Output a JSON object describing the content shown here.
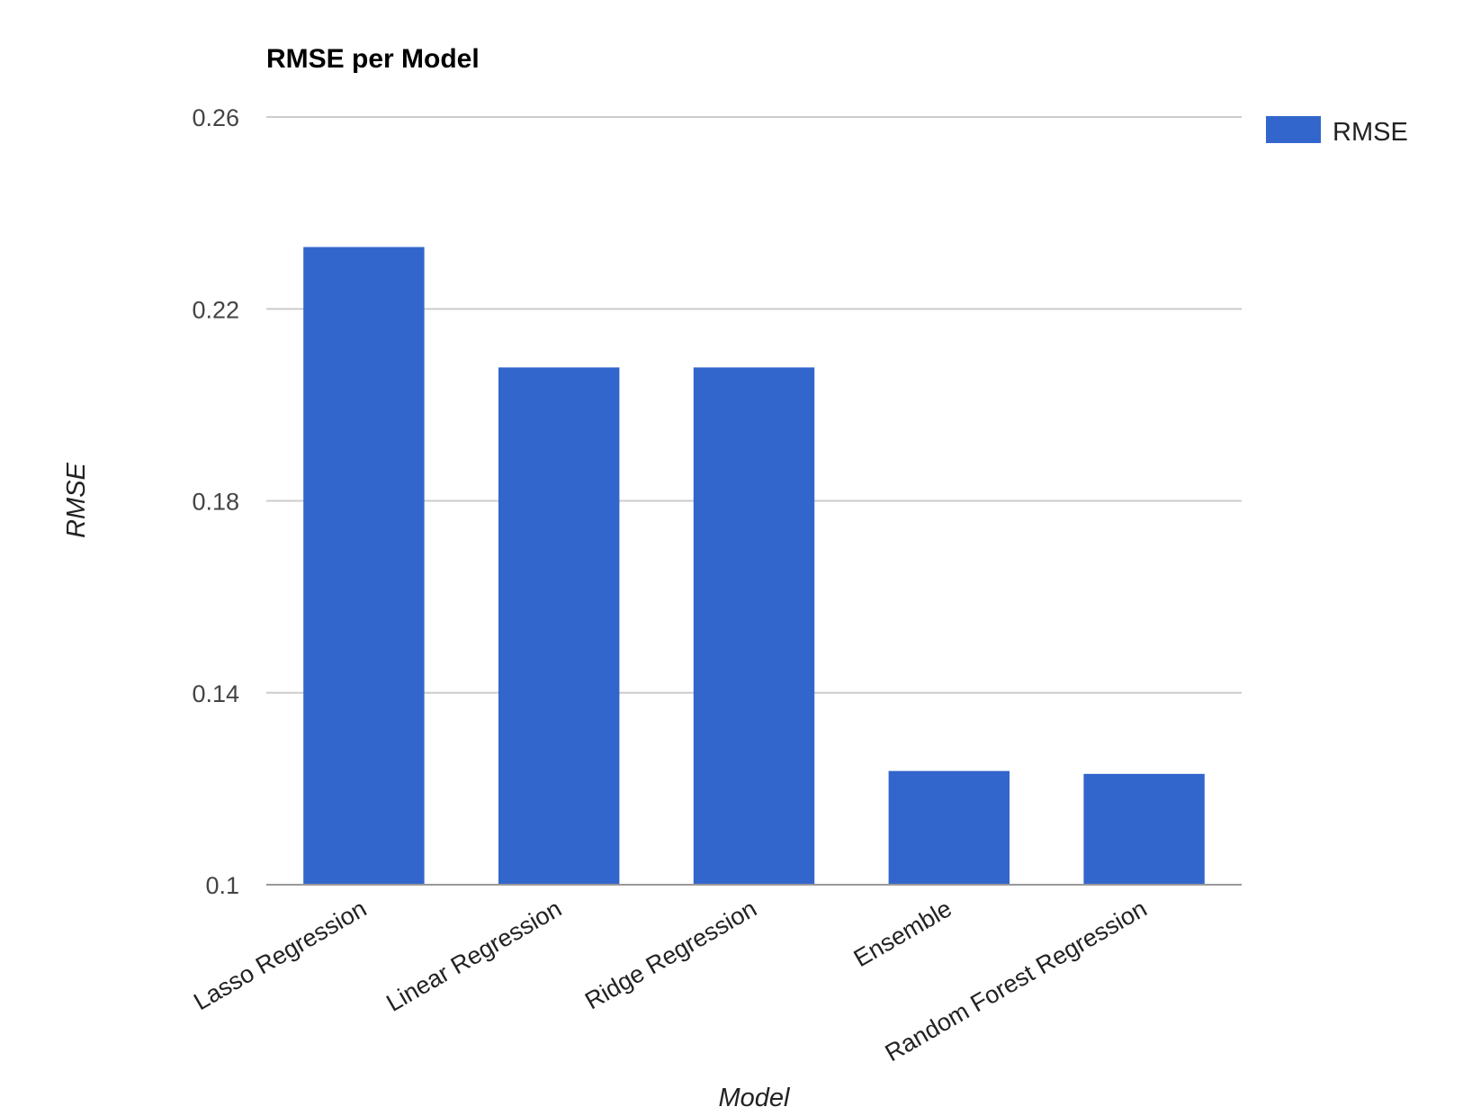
{
  "chart_data": {
    "type": "bar",
    "title": "RMSE per Model",
    "xlabel": "Model",
    "ylabel": "RMSE",
    "categories": [
      "Lasso Regression",
      "Linear Regression",
      "Ridge Regression",
      "Ensemble",
      "Random Forest Regression"
    ],
    "series": [
      {
        "name": "RMSE",
        "color": "#3366cc",
        "values": [
          0.2329,
          0.2078,
          0.2078,
          0.1237,
          0.1231
        ]
      }
    ],
    "ylim": [
      0.1,
      0.26
    ],
    "yticks": [
      "0.1",
      "0.14",
      "0.18",
      "0.22",
      "0.26"
    ],
    "ytick_values": [
      0.1,
      0.14,
      0.18,
      0.22,
      0.26
    ],
    "grid": true,
    "legend": "right"
  }
}
